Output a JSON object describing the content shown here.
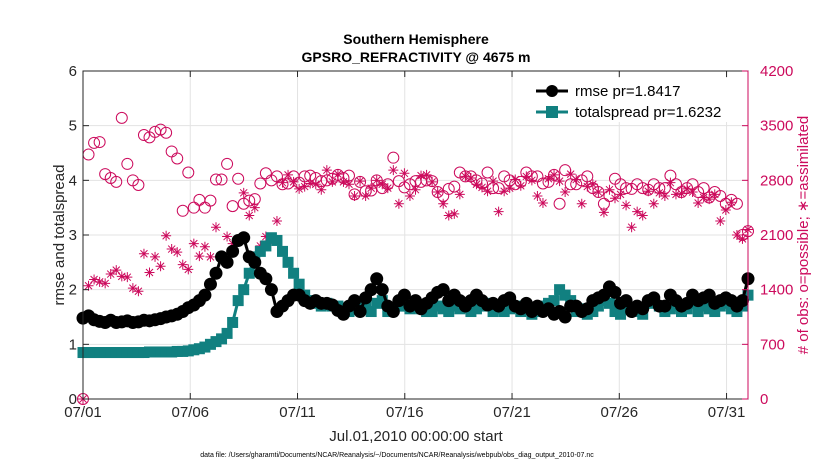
{
  "chart_data": {
    "type": "scatter",
    "title": [
      "Southern Hemisphere",
      "GPSRO_REFRACTIVITY @ 4675 m"
    ],
    "xlabel": "Jul.01,2010 00:00:00 start",
    "ylabel": "rmse and totalspread",
    "y2label": "# of obs: o=possible; ∗=assimilated",
    "footnote": "data file: /Users/gharamti/Documents/NCAR/Reanalysis/~/Documents/NCAR/Reanalysis/webpub/obs_diag_output_2010-07.nc",
    "xlim": [
      1,
      32
    ],
    "ylim": [
      0,
      6
    ],
    "y2lim": [
      0,
      4200
    ],
    "x_tick_values": [
      1,
      6,
      11,
      16,
      21,
      26,
      31
    ],
    "x_tick_labels": [
      "07/01",
      "07/06",
      "07/11",
      "07/16",
      "07/21",
      "07/26",
      "07/31"
    ],
    "y_tick_labels": [
      "0",
      "1",
      "2",
      "3",
      "4",
      "5",
      "6"
    ],
    "y2_tick_labels": [
      "0",
      "700",
      "1400",
      "2100",
      "2800",
      "3500",
      "4200"
    ],
    "colors": {
      "rmse": "#000000",
      "spread": "#118080",
      "obs": "#cc0a5c"
    },
    "series": [
      {
        "name": "rmse pr=1.8417",
        "axis": "left",
        "marker": "circle",
        "values": [
          1.48,
          1.52,
          1.45,
          1.42,
          1.4,
          1.44,
          1.4,
          1.41,
          1.43,
          1.4,
          1.41,
          1.44,
          1.43,
          1.45,
          1.47,
          1.5,
          1.52,
          1.55,
          1.6,
          1.67,
          1.72,
          1.8,
          1.9,
          2.1,
          2.3,
          2.6,
          2.5,
          2.7,
          2.9,
          2.95,
          2.6,
          2.5,
          2.3,
          2.2,
          2.0,
          1.6,
          1.7,
          1.8,
          1.9,
          1.9,
          1.8,
          1.75,
          1.8,
          1.75,
          1.75,
          1.72,
          1.62,
          1.55,
          1.7,
          1.8,
          1.6,
          1.85,
          2.0,
          2.2,
          2.0,
          1.7,
          1.6,
          1.8,
          1.9,
          1.7,
          1.8,
          1.65,
          1.75,
          1.85,
          1.95,
          2.0,
          1.8,
          1.9,
          1.8,
          1.7,
          1.8,
          1.9,
          1.8,
          1.72,
          1.75,
          1.7,
          1.8,
          1.85,
          1.7,
          1.65,
          1.75,
          1.6,
          1.7,
          1.6,
          1.65,
          1.55,
          1.6,
          1.5,
          1.7,
          1.7,
          1.6,
          1.65,
          1.8,
          1.85,
          1.9,
          2.05,
          1.95,
          1.75,
          1.8,
          1.6,
          1.7,
          1.65,
          1.8,
          1.85,
          1.7,
          1.7,
          1.9,
          1.8,
          1.7,
          1.75,
          1.9,
          1.8,
          1.85,
          1.9,
          1.75,
          1.8,
          1.85,
          1.8,
          1.7,
          1.8,
          2.2
        ]
      },
      {
        "name": "totalspread pr=1.6232",
        "axis": "left",
        "marker": "square",
        "values": [
          0.85,
          0.85,
          0.85,
          0.85,
          0.85,
          0.85,
          0.85,
          0.85,
          0.85,
          0.85,
          0.85,
          0.85,
          0.86,
          0.86,
          0.86,
          0.86,
          0.86,
          0.87,
          0.87,
          0.88,
          0.9,
          0.92,
          0.95,
          1.0,
          1.05,
          1.1,
          1.2,
          1.4,
          1.8,
          2.0,
          2.3,
          2.6,
          2.7,
          2.8,
          2.95,
          2.9,
          2.7,
          2.5,
          2.3,
          2.1,
          1.9,
          1.8,
          1.75,
          1.7,
          1.75,
          1.7,
          1.7,
          1.65,
          1.6,
          1.75,
          1.65,
          1.7,
          1.6,
          1.75,
          1.8,
          1.6,
          1.65,
          1.7,
          1.7,
          1.65,
          1.7,
          1.65,
          1.6,
          1.6,
          1.7,
          1.65,
          1.6,
          1.7,
          1.65,
          1.7,
          1.6,
          1.65,
          1.7,
          1.75,
          1.6,
          1.65,
          1.6,
          1.65,
          1.7,
          1.6,
          1.65,
          1.55,
          1.6,
          1.7,
          1.75,
          1.8,
          2.0,
          1.9,
          1.8,
          1.6,
          1.65,
          1.55,
          1.6,
          1.7,
          1.8,
          1.75,
          1.6,
          1.55,
          1.7,
          1.65,
          1.6,
          1.55,
          1.75,
          1.8,
          1.7,
          1.6,
          1.65,
          1.7,
          1.6,
          1.65,
          1.75,
          1.6,
          1.7,
          1.65,
          1.6,
          1.7,
          1.75,
          1.65,
          1.6,
          1.7,
          1.9
        ]
      },
      {
        "name": "possible",
        "axis": "right",
        "marker": "open-circle",
        "values": [
          0,
          3130,
          3280,
          3290,
          2880,
          2830,
          2780,
          3600,
          3010,
          2800,
          2740,
          3380,
          3350,
          3420,
          3450,
          3410,
          3170,
          3080,
          2410,
          2900,
          2450,
          2550,
          2450,
          2540,
          2810,
          2810,
          3010,
          2470,
          2820,
          2500,
          2540,
          2560,
          2760,
          2890,
          2800,
          2850,
          2750,
          2760,
          2850,
          2770,
          2850,
          2860,
          2830,
          2790,
          2800,
          2820,
          2870,
          2830,
          2860,
          2620,
          2780,
          2660,
          2670,
          2800,
          2700,
          2750,
          3090,
          2790,
          2710,
          2750,
          2790,
          2780,
          2800,
          2790,
          2650,
          2600,
          2690,
          2720,
          2900,
          2850,
          2850,
          2800,
          2760,
          2900,
          2700,
          2700,
          2850,
          2800,
          2750,
          2780,
          2900,
          2850,
          2850,
          2760,
          2780,
          2870,
          2500,
          2930,
          2750,
          2750,
          2800,
          2850,
          2700,
          2650,
          2500,
          2600,
          2820,
          2750,
          2700,
          2690,
          2750,
          2700,
          2680,
          2750,
          2700,
          2700,
          2860,
          2750,
          2650,
          2700,
          2750,
          2650,
          2700,
          2580,
          2650,
          2600,
          2500,
          2550,
          2500,
          2100,
          2150
        ]
      },
      {
        "name": "assimilated",
        "axis": "right",
        "marker": "asterisk",
        "values": [
          0,
          1450,
          1530,
          1500,
          1480,
          1600,
          1650,
          1570,
          1560,
          1420,
          1380,
          1860,
          1620,
          1820,
          1700,
          2090,
          1920,
          1880,
          1720,
          1660,
          1990,
          1830,
          1950,
          1820,
          2200,
          1800,
          2080,
          1990,
          2010,
          2640,
          2350,
          2450,
          1960,
          2080,
          2050,
          2280,
          2770,
          2870,
          2780,
          2690,
          2720,
          2760,
          2750,
          2680,
          2930,
          2780,
          2880,
          2780,
          2750,
          2600,
          2790,
          2600,
          2700,
          2800,
          2750,
          2700,
          2930,
          2500,
          2890,
          2600,
          2680,
          2860,
          2870,
          2780,
          2650,
          2500,
          2350,
          2370,
          2620,
          2850,
          2830,
          2750,
          2710,
          2660,
          2790,
          2400,
          2660,
          2700,
          2810,
          2730,
          2850,
          2800,
          2600,
          2510,
          2820,
          2870,
          2790,
          2650,
          2880,
          2810,
          2500,
          2720,
          2750,
          2650,
          2390,
          2680,
          2570,
          2620,
          2480,
          2200,
          2400,
          2350,
          2660,
          2500,
          2640,
          2600,
          2770,
          2620,
          2630,
          2690,
          2650,
          2510,
          2580,
          2560,
          2620,
          2280,
          2420,
          2520,
          2100,
          2050,
          2170
        ]
      }
    ]
  }
}
